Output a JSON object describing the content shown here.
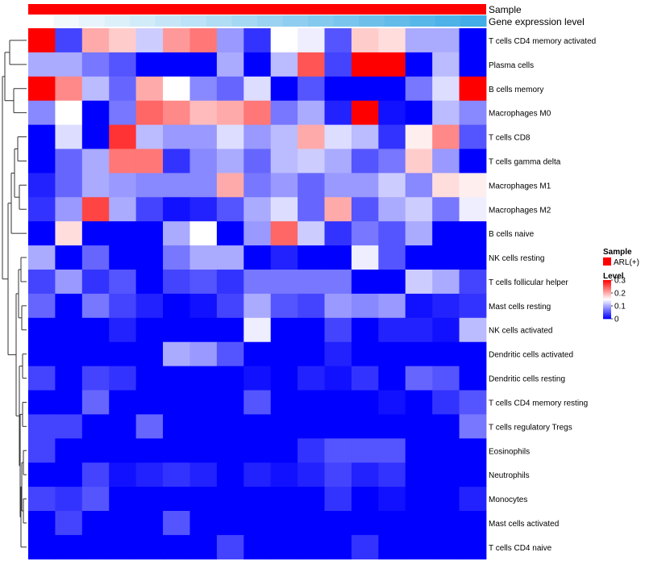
{
  "chart_data": {
    "type": "heatmap",
    "annotation_tracks": [
      {
        "label": "Sample",
        "color": "#ff0000"
      },
      {
        "label": "Gene expression level",
        "colors": [
          "#ffffff",
          "#f2f9fc",
          "#e7f4fb",
          "#dcf0f9",
          "#d1ebf8",
          "#c6e6f7",
          "#bbe2f6",
          "#b0ddf4",
          "#a5d8f3",
          "#9ad3f1",
          "#8fcef0",
          "#84caee",
          "#79c5ed",
          "#6ec0eb",
          "#63bbea",
          "#58b7e9",
          "#4db2e7",
          "#42ade6"
        ]
      }
    ],
    "rows": [
      "T cells CD4 memory activated",
      "Plasma cells",
      "B cells memory",
      "Macrophages M0",
      "T cells CD8",
      "T cells gamma delta",
      "Macrophages M1",
      "Macrophages M2",
      "B cells naive",
      "NK cells resting",
      "T cells follicular helper",
      "Mast cells resting",
      "NK cells activated",
      "Dendritic cells activated",
      "Dendritic cells resting",
      "T cells CD4 memory resting",
      "T cells regulatory  Tregs",
      "Eosinophils",
      "Neutrophils",
      "Monocytes",
      "Mast cells activated",
      "T cells CD4 naive"
    ],
    "values": [
      [
        0.3,
        0.04,
        0.2,
        0.18,
        0.12,
        0.21,
        0.23,
        0.09,
        0.03,
        0.15,
        0.14,
        0.05,
        0.18,
        0.17,
        0.1,
        0.1,
        0.0
      ],
      [
        0.1,
        0.1,
        0.07,
        0.05,
        0.0,
        0.0,
        0.0,
        0.1,
        0.0,
        0.11,
        0.25,
        0.04,
        0.3,
        0.3,
        0.0,
        0.11,
        0.0
      ],
      [
        0.3,
        0.22,
        0.11,
        0.06,
        0.2,
        0.15,
        0.08,
        0.06,
        0.13,
        0.0,
        0.05,
        0.0,
        0.0,
        0.0,
        0.07,
        0.13,
        0.3
      ],
      [
        0.08,
        0.15,
        0.0,
        0.07,
        0.24,
        0.22,
        0.19,
        0.2,
        0.23,
        0.07,
        0.1,
        0.02,
        0.3,
        0.01,
        0.0,
        0.11,
        0.08
      ],
      [
        0.0,
        0.13,
        0.0,
        0.27,
        0.11,
        0.09,
        0.09,
        0.13,
        0.09,
        0.11,
        0.2,
        0.13,
        0.11,
        0.03,
        0.16,
        0.22,
        0.05
      ],
      [
        0.0,
        0.06,
        0.1,
        0.23,
        0.23,
        0.03,
        0.08,
        0.1,
        0.06,
        0.11,
        0.12,
        0.1,
        0.05,
        0.07,
        0.18,
        0.09,
        0.0
      ],
      [
        0.02,
        0.06,
        0.1,
        0.09,
        0.08,
        0.08,
        0.08,
        0.2,
        0.07,
        0.09,
        0.06,
        0.09,
        0.09,
        0.12,
        0.08,
        0.17,
        0.16
      ],
      [
        0.03,
        0.09,
        0.26,
        0.1,
        0.04,
        0.01,
        0.02,
        0.05,
        0.1,
        0.13,
        0.06,
        0.2,
        0.05,
        0.1,
        0.12,
        0.07,
        0.14
      ],
      [
        0.0,
        0.17,
        0.0,
        0.0,
        0.0,
        0.1,
        0.15,
        0.0,
        0.09,
        0.24,
        0.12,
        0.03,
        0.07,
        0.05,
        0.1,
        0.0,
        0.0
      ],
      [
        0.1,
        0.0,
        0.06,
        0.0,
        0.0,
        0.07,
        0.1,
        0.1,
        0.0,
        0.02,
        0.0,
        0.0,
        0.14,
        0.05,
        0.0,
        0.0,
        0.0
      ],
      [
        0.04,
        0.09,
        0.03,
        0.05,
        0.0,
        0.04,
        0.05,
        0.03,
        0.07,
        0.07,
        0.07,
        0.07,
        0.0,
        0.0,
        0.12,
        0.1,
        0.04
      ],
      [
        0.06,
        0.0,
        0.07,
        0.04,
        0.02,
        0.0,
        0.01,
        0.04,
        0.1,
        0.05,
        0.04,
        0.09,
        0.08,
        0.09,
        0.01,
        0.02,
        0.03
      ],
      [
        0.0,
        0.0,
        0.0,
        0.02,
        0.0,
        0.0,
        0.0,
        0.0,
        0.14,
        0.0,
        0.0,
        0.04,
        0.0,
        0.02,
        0.02,
        0.01,
        0.11
      ],
      [
        0.0,
        0.0,
        0.0,
        0.0,
        0.0,
        0.1,
        0.09,
        0.05,
        0.0,
        0.0,
        0.0,
        0.02,
        0.0,
        0.0,
        0.0,
        0.0,
        0.0
      ],
      [
        0.04,
        0.0,
        0.04,
        0.03,
        0.0,
        0.0,
        0.0,
        0.0,
        0.01,
        0.0,
        0.02,
        0.01,
        0.03,
        0.0,
        0.06,
        0.05,
        0.0
      ],
      [
        0.0,
        0.0,
        0.06,
        0.0,
        0.0,
        0.0,
        0.0,
        0.0,
        0.05,
        0.0,
        0.0,
        0.0,
        0.0,
        0.01,
        0.0,
        0.03,
        0.05
      ],
      [
        0.04,
        0.04,
        0.0,
        0.0,
        0.06,
        0.0,
        0.0,
        0.0,
        0.0,
        0.0,
        0.0,
        0.0,
        0.0,
        0.0,
        0.0,
        0.0,
        0.07
      ],
      [
        0.04,
        0.0,
        0.0,
        0.0,
        0.0,
        0.0,
        0.0,
        0.0,
        0.0,
        0.0,
        0.03,
        0.05,
        0.05,
        0.05,
        0.0,
        0.0,
        0.0
      ],
      [
        0.0,
        0.0,
        0.04,
        0.01,
        0.02,
        0.03,
        0.02,
        0.0,
        0.02,
        0.01,
        0.02,
        0.04,
        0.02,
        0.03,
        0.0,
        0.0,
        0.0
      ],
      [
        0.04,
        0.03,
        0.05,
        0.0,
        0.0,
        0.0,
        0.0,
        0.0,
        0.0,
        0.0,
        0.0,
        0.03,
        0.0,
        0.01,
        0.0,
        0.0,
        0.02
      ],
      [
        0.0,
        0.04,
        0.0,
        0.0,
        0.0,
        0.05,
        0.0,
        0.0,
        0.0,
        0.0,
        0.0,
        0.0,
        0.0,
        0.0,
        0.0,
        0.0,
        0.0
      ],
      [
        0.0,
        0.0,
        0.0,
        0.0,
        0.0,
        0.0,
        0.0,
        0.04,
        0.0,
        0.0,
        0.0,
        0.0,
        0.03,
        0.0,
        0.0,
        0.0,
        0.0
      ]
    ],
    "color_scale": {
      "min": 0,
      "max": 0.3,
      "low": "#0000ff",
      "mid": "#ffffff",
      "high": "#ff0000"
    },
    "legend": {
      "sample_title": "Sample",
      "sample_entry": "ARL(+)",
      "level_title": "Level",
      "ticks": [
        {
          "value": 0.3,
          "label": "0.3"
        },
        {
          "value": 0.2,
          "label": "0.2"
        },
        {
          "value": 0.1,
          "label": "0.1"
        },
        {
          "value": 0.0,
          "label": "0"
        }
      ]
    },
    "dendrogram": "rows",
    "grid": false
  }
}
